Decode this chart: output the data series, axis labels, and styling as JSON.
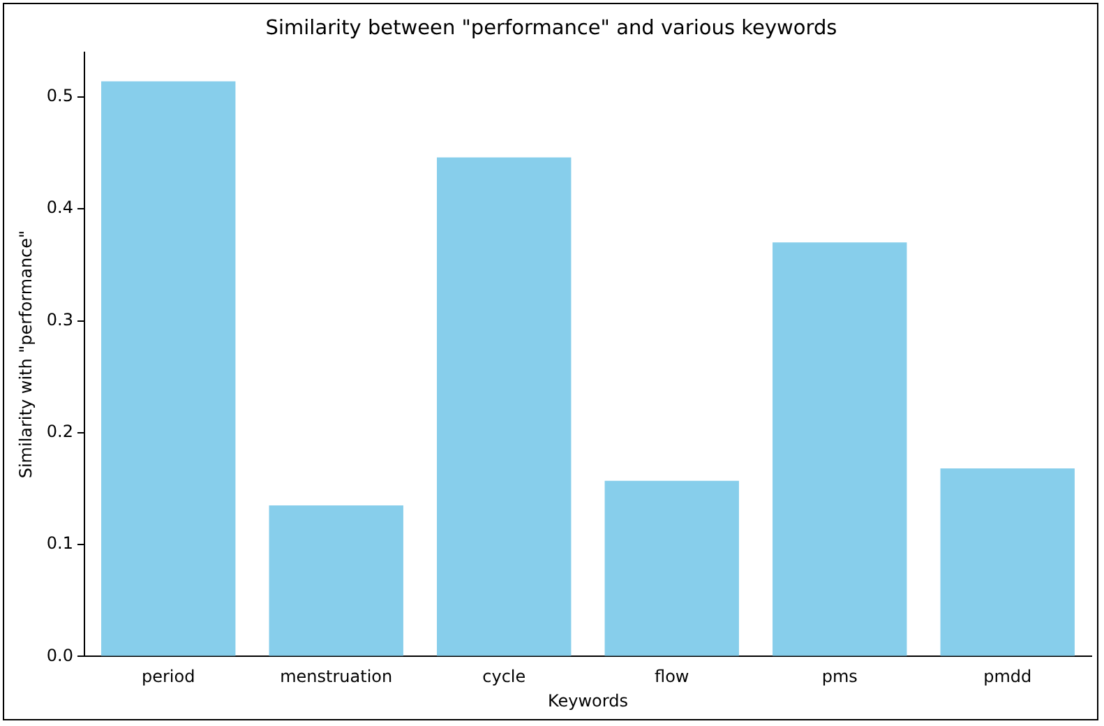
{
  "chart_data": {
    "type": "bar",
    "title": "Similarity between \"performance\" and various keywords",
    "xlabel": "Keywords",
    "ylabel": "Similarity with \"performance\"",
    "categories": [
      "period",
      "menstruation",
      "cycle",
      "flow",
      "pms",
      "pmdd"
    ],
    "values": [
      0.514,
      0.135,
      0.446,
      0.157,
      0.37,
      0.168
    ],
    "color": "#87ceeb",
    "ylim": [
      0,
      0.54
    ],
    "yticks": [
      {
        "value": 0,
        "label": "0.0"
      },
      {
        "value": 0.1,
        "label": "0.1"
      },
      {
        "value": 0.2,
        "label": "0.2"
      },
      {
        "value": 0.3,
        "label": "0.3"
      },
      {
        "value": 0.4,
        "label": "0.4"
      },
      {
        "value": 0.5,
        "label": "0.5"
      }
    ],
    "grid": false,
    "legend": false
  }
}
